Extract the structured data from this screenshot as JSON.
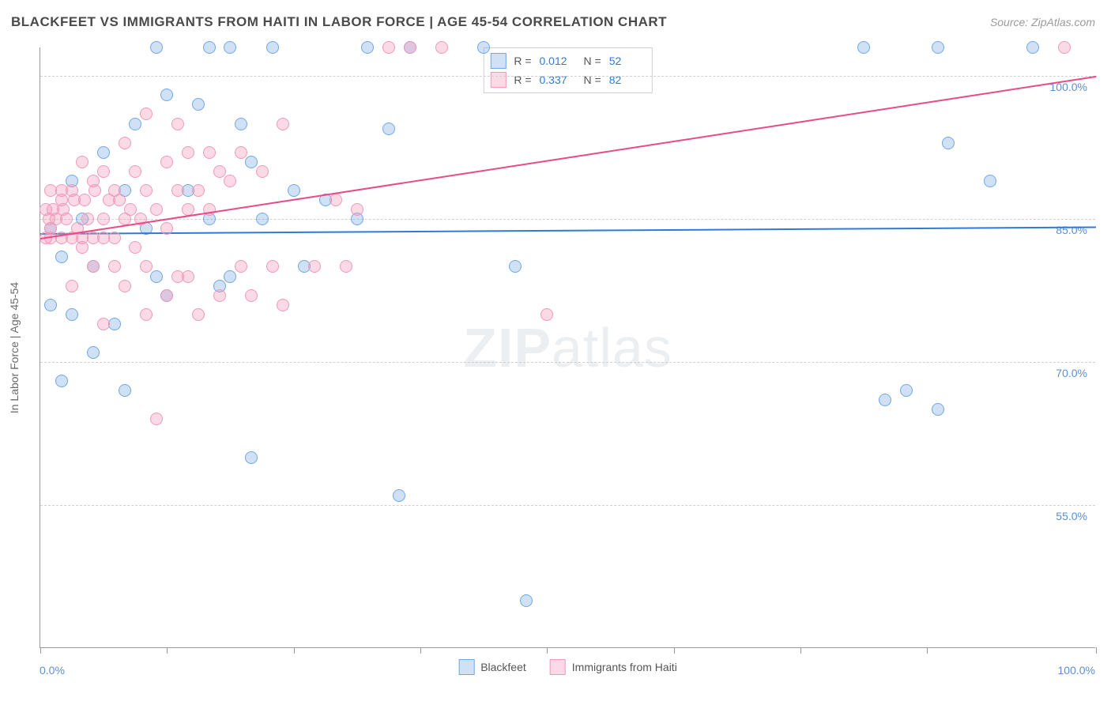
{
  "title": "BLACKFEET VS IMMIGRANTS FROM HAITI IN LABOR FORCE | AGE 45-54 CORRELATION CHART",
  "source": "Source: ZipAtlas.com",
  "yaxis_title": "In Labor Force | Age 45-54",
  "watermark_a": "ZIP",
  "watermark_b": "atlas",
  "xlim": [
    0,
    100
  ],
  "ylim": [
    40,
    103
  ],
  "x_tick_positions": [
    0,
    12,
    24,
    36,
    48,
    60,
    72,
    84,
    100
  ],
  "x_label_min": "0.0%",
  "x_label_max": "100.0%",
  "y_gridlines": [
    {
      "value": 100,
      "label": "100.0%"
    },
    {
      "value": 85,
      "label": "85.0%"
    },
    {
      "value": 70,
      "label": "70.0%"
    },
    {
      "value": 55,
      "label": "55.0%"
    }
  ],
  "series": [
    {
      "name": "Blackfeet",
      "fill": "rgba(120,170,230,0.35)",
      "stroke": "#6fa8e6",
      "trend_color": "#2e7bd6",
      "trend_y_start": 83.5,
      "trend_y_end": 84.2,
      "R": "0.012",
      "N": "52",
      "points": [
        [
          11,
          103
        ],
        [
          16,
          103
        ],
        [
          18,
          103
        ],
        [
          22,
          103
        ],
        [
          31,
          103
        ],
        [
          35,
          103
        ],
        [
          42,
          103
        ],
        [
          78,
          103
        ],
        [
          85,
          103
        ],
        [
          12,
          98
        ],
        [
          15,
          97
        ],
        [
          9,
          95
        ],
        [
          19,
          95
        ],
        [
          33,
          94.5
        ],
        [
          6,
          92
        ],
        [
          20,
          91
        ],
        [
          3,
          89
        ],
        [
          8,
          88
        ],
        [
          14,
          88
        ],
        [
          24,
          88
        ],
        [
          27,
          87
        ],
        [
          1,
          84
        ],
        [
          4,
          85
        ],
        [
          10,
          84
        ],
        [
          16,
          85
        ],
        [
          21,
          85
        ],
        [
          30,
          85
        ],
        [
          2,
          81
        ],
        [
          5,
          80
        ],
        [
          11,
          79
        ],
        [
          18,
          79
        ],
        [
          25,
          80
        ],
        [
          45,
          80
        ],
        [
          1,
          76
        ],
        [
          3,
          75
        ],
        [
          7,
          74
        ],
        [
          12,
          77
        ],
        [
          5,
          71
        ],
        [
          17,
          78
        ],
        [
          2,
          68
        ],
        [
          8,
          67
        ],
        [
          82,
          67
        ],
        [
          80,
          66
        ],
        [
          85,
          65
        ],
        [
          20,
          60
        ],
        [
          34,
          56
        ],
        [
          46,
          45
        ],
        [
          86,
          93
        ],
        [
          90,
          89
        ],
        [
          94,
          103
        ]
      ]
    },
    {
      "name": "Immigrants from Haiti",
      "fill": "rgba(245,150,180,0.35)",
      "stroke": "#ef9ab6",
      "trend_color": "#e94b86",
      "trend_y_start": 83,
      "trend_y_end": 100,
      "R": "0.337",
      "N": "82",
      "points": [
        [
          33,
          103
        ],
        [
          35,
          103
        ],
        [
          38,
          103
        ],
        [
          97,
          103
        ],
        [
          10,
          96
        ],
        [
          13,
          95
        ],
        [
          23,
          95
        ],
        [
          8,
          93
        ],
        [
          14,
          92
        ],
        [
          16,
          92
        ],
        [
          19,
          92
        ],
        [
          4,
          91
        ],
        [
          6,
          90
        ],
        [
          9,
          90
        ],
        [
          12,
          91
        ],
        [
          17,
          90
        ],
        [
          21,
          90
        ],
        [
          1,
          88
        ],
        [
          2,
          88
        ],
        [
          3,
          88
        ],
        [
          5,
          89
        ],
        [
          7,
          88
        ],
        [
          10,
          88
        ],
        [
          13,
          88
        ],
        [
          15,
          88
        ],
        [
          18,
          89
        ],
        [
          28,
          87
        ],
        [
          0.5,
          86
        ],
        [
          1.5,
          85
        ],
        [
          2.5,
          85
        ],
        [
          3.5,
          84
        ],
        [
          4.5,
          85
        ],
        [
          6,
          85
        ],
        [
          8,
          85
        ],
        [
          11,
          86
        ],
        [
          14,
          86
        ],
        [
          16,
          86
        ],
        [
          30,
          86
        ],
        [
          0.5,
          83
        ],
        [
          1,
          83
        ],
        [
          2,
          83
        ],
        [
          3,
          83
        ],
        [
          4,
          83
        ],
        [
          5,
          83
        ],
        [
          6,
          83
        ],
        [
          7,
          83
        ],
        [
          9,
          82
        ],
        [
          12,
          84
        ],
        [
          5,
          80
        ],
        [
          7,
          80
        ],
        [
          10,
          80
        ],
        [
          13,
          79
        ],
        [
          14,
          79
        ],
        [
          19,
          80
        ],
        [
          22,
          80
        ],
        [
          26,
          80
        ],
        [
          29,
          80
        ],
        [
          3,
          78
        ],
        [
          8,
          78
        ],
        [
          12,
          77
        ],
        [
          17,
          77
        ],
        [
          20,
          77
        ],
        [
          6,
          74
        ],
        [
          10,
          75
        ],
        [
          15,
          75
        ],
        [
          23,
          76
        ],
        [
          48,
          75
        ],
        [
          11,
          64
        ],
        [
          4,
          82
        ],
        [
          2,
          87
        ],
        [
          1,
          84
        ],
        [
          0.8,
          85
        ],
        [
          1.2,
          86
        ],
        [
          2.2,
          86
        ],
        [
          3.2,
          87
        ],
        [
          4.2,
          87
        ],
        [
          5.2,
          88
        ],
        [
          6.5,
          87
        ],
        [
          7.5,
          87
        ],
        [
          8.5,
          86
        ],
        [
          9.5,
          85
        ]
      ]
    }
  ],
  "legend": {
    "series1_label": "Blackfeet",
    "series2_label": "Immigrants from Haiti"
  },
  "stats_labels": {
    "R": "R =",
    "N": "N ="
  }
}
